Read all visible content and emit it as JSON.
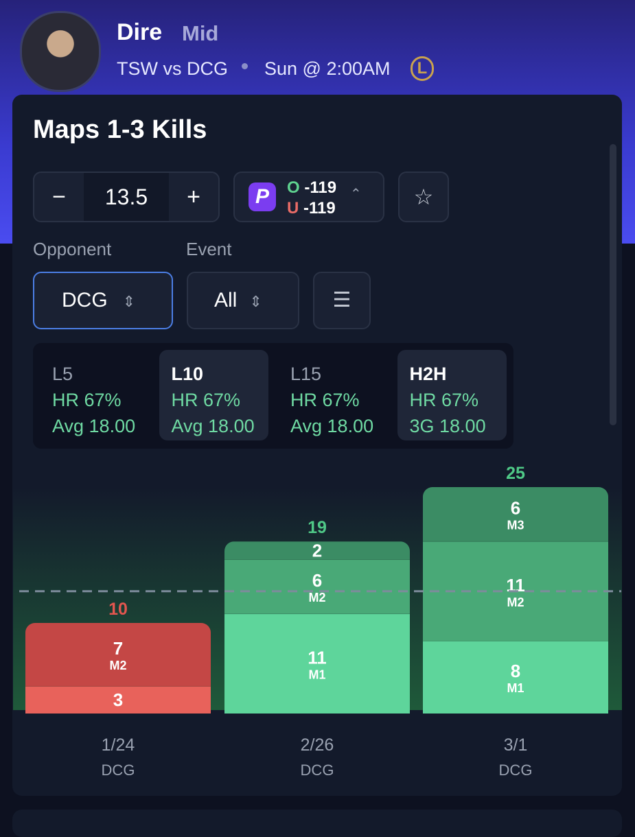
{
  "header": {
    "player": "Dire",
    "role": "Mid",
    "matchup": "TSW vs DCG",
    "time": "Sun @ 2:00AM"
  },
  "card": {
    "title": "Maps 1-3 Kills",
    "line": 13.5,
    "over": "O",
    "over_odds": "-119",
    "under": "U",
    "under_odds": "-119",
    "opponent_label": "Opponent",
    "opponent": "DCG",
    "event_label": "Event",
    "event": "All"
  },
  "stats": [
    {
      "label": "L5",
      "hr": "HR 67%",
      "avg": "Avg 18.00",
      "active": false
    },
    {
      "label": "L10",
      "hr": "HR 67%",
      "avg": "Avg 18.00",
      "active": true
    },
    {
      "label": "L15",
      "hr": "HR 67%",
      "avg": "Avg 18.00",
      "active": false
    },
    {
      "label": "H2H",
      "hr": "HR 67%",
      "avg": "3G 18.00",
      "active": true
    }
  ],
  "chart": {
    "games": [
      {
        "date": "1/24",
        "opponent": "DCG",
        "total": 10,
        "color": "#e3564f",
        "segments": [
          {
            "value": 3
          },
          {
            "value": 7,
            "label": "M2"
          }
        ]
      },
      {
        "date": "2/26",
        "opponent": "DCG",
        "total": 19,
        "color": "#4fc987",
        "segments": [
          {
            "value": 11,
            "label": "M1"
          },
          {
            "value": 6,
            "label": "M2"
          },
          {
            "value": 2
          }
        ]
      },
      {
        "date": "3/1",
        "opponent": "DCG",
        "total": 25,
        "color": "#4fc987",
        "segments": [
          {
            "value": 8,
            "label": "M1"
          },
          {
            "value": 11,
            "label": "M2"
          },
          {
            "value": 6,
            "label": "M3"
          }
        ]
      }
    ]
  }
}
